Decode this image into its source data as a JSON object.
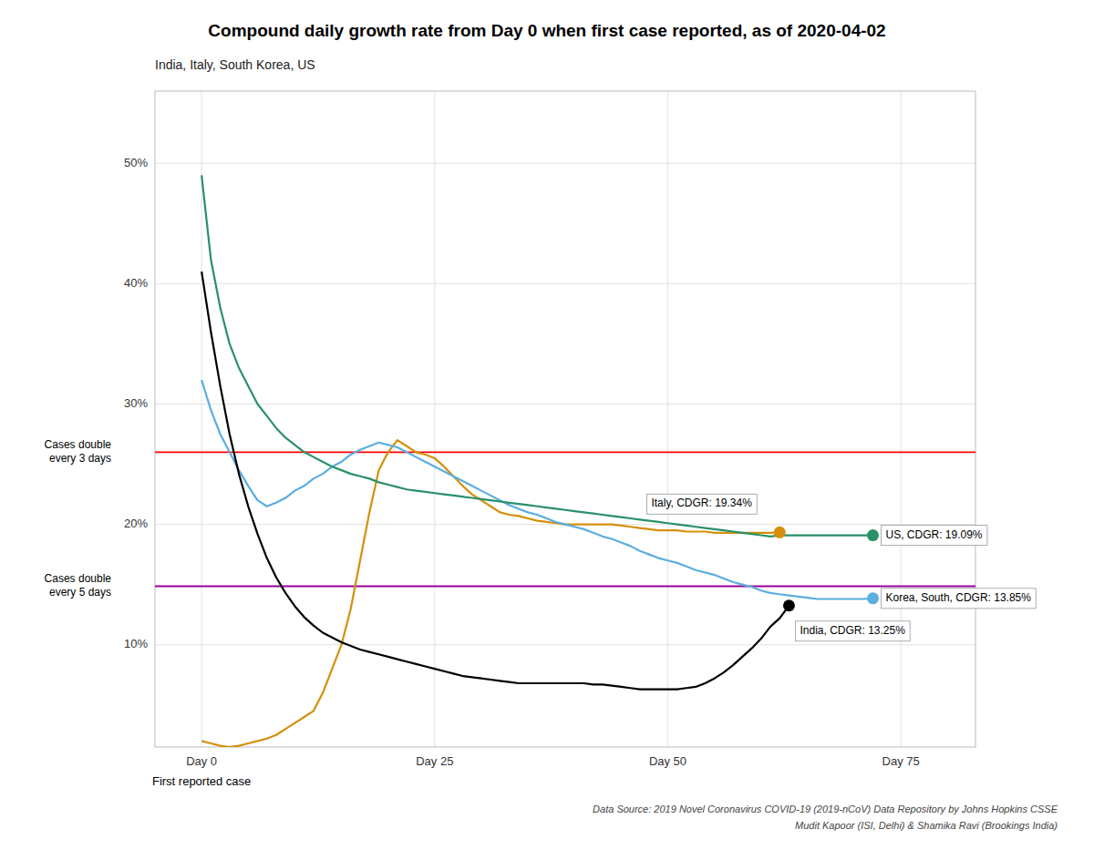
{
  "chart_data": {
    "type": "line",
    "title": "Compound daily growth rate from Day 0 when first case reported, as of 2020-04-02",
    "subtitle": "India, Italy, South Korea, US",
    "x_annotation": "First reported case",
    "source": [
      "Data Source: 2019 Novel Coronavirus COVID-19 (2019-nCoV) Data Repository by Johns Hopkins CSSE",
      "Mudit Kapoor (ISI, Delhi) & Shamika Ravi (Brookings India)"
    ],
    "xlim": [
      -5,
      83
    ],
    "ylim": [
      0.015,
      0.56
    ],
    "xticks": [
      {
        "value": 0,
        "label": "Day 0"
      },
      {
        "value": 25,
        "label": "Day 25"
      },
      {
        "value": 50,
        "label": "Day 50"
      },
      {
        "value": 75,
        "label": "Day 75"
      }
    ],
    "yticks": [
      {
        "value": 0.1,
        "label": "10%"
      },
      {
        "value": 0.2,
        "label": "20%"
      },
      {
        "value": 0.3,
        "label": "30%"
      },
      {
        "value": 0.4,
        "label": "40%"
      },
      {
        "value": 0.5,
        "label": "50%"
      }
    ],
    "grid": true,
    "reference_lines": [
      {
        "y": 0.2599,
        "label": "Cases double\nevery 3 days",
        "color": "red"
      },
      {
        "y": 0.1486,
        "label": "Cases double\nevery 5 days",
        "color": "#990099"
      }
    ],
    "series": [
      {
        "color": "#D4900A",
        "x": [
          0,
          1,
          2,
          3,
          4,
          5,
          6,
          7,
          8,
          9,
          10,
          11,
          12,
          13,
          14,
          15,
          16,
          17,
          18,
          19,
          20,
          21,
          22,
          23,
          24,
          25,
          26,
          27,
          28,
          29,
          30,
          31,
          32,
          33,
          34,
          35,
          36,
          37,
          38,
          39,
          40,
          41,
          42,
          43,
          44,
          45,
          46,
          47,
          48,
          49,
          50,
          51,
          52,
          53,
          54,
          55,
          56,
          57,
          58,
          59,
          60,
          61,
          62
        ],
        "values": [
          0.02,
          0.018,
          0.016,
          0.015,
          0.016,
          0.018,
          0.02,
          0.022,
          0.025,
          0.03,
          0.035,
          0.04,
          0.045,
          0.06,
          0.08,
          0.1,
          0.13,
          0.17,
          0.21,
          0.245,
          0.26,
          0.27,
          0.265,
          0.26,
          0.258,
          0.255,
          0.248,
          0.24,
          0.232,
          0.225,
          0.22,
          0.215,
          0.21,
          0.208,
          0.207,
          0.205,
          0.203,
          0.202,
          0.201,
          0.2,
          0.2,
          0.2,
          0.2,
          0.2,
          0.2,
          0.199,
          0.198,
          0.197,
          0.196,
          0.195,
          0.195,
          0.195,
          0.194,
          0.194,
          0.194,
          0.193,
          0.193,
          0.193,
          0.193,
          0.193,
          0.193,
          0.193,
          0.1934
        ]
      },
      {
        "color": "#5BAEE0",
        "x": [
          0,
          1,
          2,
          3,
          4,
          5,
          6,
          7,
          8,
          9,
          10,
          11,
          12,
          13,
          14,
          15,
          16,
          17,
          18,
          19,
          20,
          21,
          22,
          23,
          24,
          25,
          26,
          27,
          28,
          29,
          30,
          31,
          32,
          33,
          34,
          35,
          36,
          37,
          38,
          39,
          40,
          41,
          42,
          43,
          44,
          45,
          46,
          47,
          48,
          49,
          50,
          51,
          52,
          53,
          54,
          55,
          56,
          57,
          58,
          59,
          60,
          61,
          62,
          63,
          64,
          65,
          66,
          67,
          68,
          69,
          70,
          71,
          72
        ],
        "values": [
          0.32,
          0.295,
          0.275,
          0.26,
          0.245,
          0.232,
          0.22,
          0.215,
          0.218,
          0.222,
          0.228,
          0.232,
          0.238,
          0.242,
          0.248,
          0.252,
          0.258,
          0.262,
          0.265,
          0.268,
          0.266,
          0.264,
          0.26,
          0.256,
          0.252,
          0.248,
          0.244,
          0.24,
          0.236,
          0.232,
          0.228,
          0.224,
          0.22,
          0.216,
          0.213,
          0.21,
          0.208,
          0.205,
          0.202,
          0.2,
          0.198,
          0.196,
          0.193,
          0.19,
          0.188,
          0.185,
          0.182,
          0.178,
          0.175,
          0.172,
          0.17,
          0.168,
          0.165,
          0.162,
          0.16,
          0.158,
          0.155,
          0.152,
          0.15,
          0.148,
          0.145,
          0.143,
          0.142,
          0.141,
          0.14,
          0.139,
          0.138,
          0.138,
          0.138,
          0.138,
          0.138,
          0.138,
          0.1385
        ]
      },
      {
        "color": "#2A9068",
        "x": [
          0,
          1,
          2,
          3,
          4,
          5,
          6,
          7,
          8,
          9,
          10,
          11,
          12,
          13,
          14,
          15,
          16,
          17,
          18,
          19,
          20,
          21,
          22,
          23,
          24,
          25,
          26,
          27,
          28,
          29,
          30,
          31,
          32,
          33,
          34,
          35,
          36,
          37,
          38,
          39,
          40,
          41,
          42,
          43,
          44,
          45,
          46,
          47,
          48,
          49,
          50,
          51,
          52,
          53,
          54,
          55,
          56,
          57,
          58,
          59,
          60,
          61,
          62,
          63,
          64,
          65,
          66,
          67,
          68,
          69,
          70,
          71,
          72
        ],
        "values": [
          0.49,
          0.42,
          0.38,
          0.35,
          0.33,
          0.315,
          0.3,
          0.29,
          0.28,
          0.272,
          0.266,
          0.26,
          0.256,
          0.252,
          0.248,
          0.245,
          0.242,
          0.24,
          0.238,
          0.235,
          0.233,
          0.231,
          0.229,
          0.228,
          0.227,
          0.226,
          0.225,
          0.224,
          0.223,
          0.222,
          0.221,
          0.22,
          0.219,
          0.218,
          0.217,
          0.216,
          0.215,
          0.214,
          0.213,
          0.212,
          0.211,
          0.21,
          0.209,
          0.208,
          0.207,
          0.206,
          0.205,
          0.204,
          0.203,
          0.202,
          0.201,
          0.2,
          0.199,
          0.198,
          0.197,
          0.196,
          0.195,
          0.194,
          0.193,
          0.192,
          0.191,
          0.19,
          0.1909,
          0.1909,
          0.1909,
          0.1909,
          0.1909,
          0.1909,
          0.1909,
          0.1909,
          0.1909,
          0.1909,
          0.1909
        ]
      },
      {
        "color": "#000000",
        "x": [
          0,
          1,
          2,
          3,
          4,
          5,
          6,
          7,
          8,
          9,
          10,
          11,
          12,
          13,
          14,
          15,
          16,
          17,
          18,
          19,
          20,
          21,
          22,
          23,
          24,
          25,
          26,
          27,
          28,
          29,
          30,
          31,
          32,
          33,
          34,
          35,
          36,
          37,
          38,
          39,
          40,
          41,
          42,
          43,
          44,
          45,
          46,
          47,
          48,
          49,
          50,
          51,
          52,
          53,
          54,
          55,
          56,
          57,
          58,
          59,
          60,
          61,
          62,
          63
        ],
        "values": [
          0.41,
          0.36,
          0.315,
          0.275,
          0.242,
          0.215,
          0.192,
          0.172,
          0.156,
          0.143,
          0.132,
          0.123,
          0.116,
          0.11,
          0.106,
          0.102,
          0.099,
          0.096,
          0.094,
          0.092,
          0.09,
          0.088,
          0.086,
          0.084,
          0.082,
          0.08,
          0.078,
          0.076,
          0.074,
          0.073,
          0.072,
          0.071,
          0.07,
          0.069,
          0.068,
          0.068,
          0.068,
          0.068,
          0.068,
          0.068,
          0.068,
          0.068,
          0.067,
          0.067,
          0.066,
          0.065,
          0.064,
          0.063,
          0.063,
          0.063,
          0.063,
          0.063,
          0.064,
          0.065,
          0.068,
          0.072,
          0.077,
          0.083,
          0.09,
          0.097,
          0.105,
          0.115,
          0.122,
          0.1325
        ]
      }
    ],
    "annotations": [
      {
        "x": 62,
        "y": 0.1934,
        "label": "Italy, CDGR: 19.34%",
        "color": "#D4900A"
      },
      {
        "x": 72,
        "y": 0.1909,
        "label": "US, CDGR: 19.09%",
        "color": "#2A9068"
      },
      {
        "x": 72,
        "y": 0.1385,
        "label": "Korea, South, CDGR: 13.85%",
        "color": "#5BAEE0"
      },
      {
        "x": 63,
        "y": 0.1325,
        "label": "India, CDGR: 13.25%",
        "color": "#000000"
      }
    ]
  }
}
